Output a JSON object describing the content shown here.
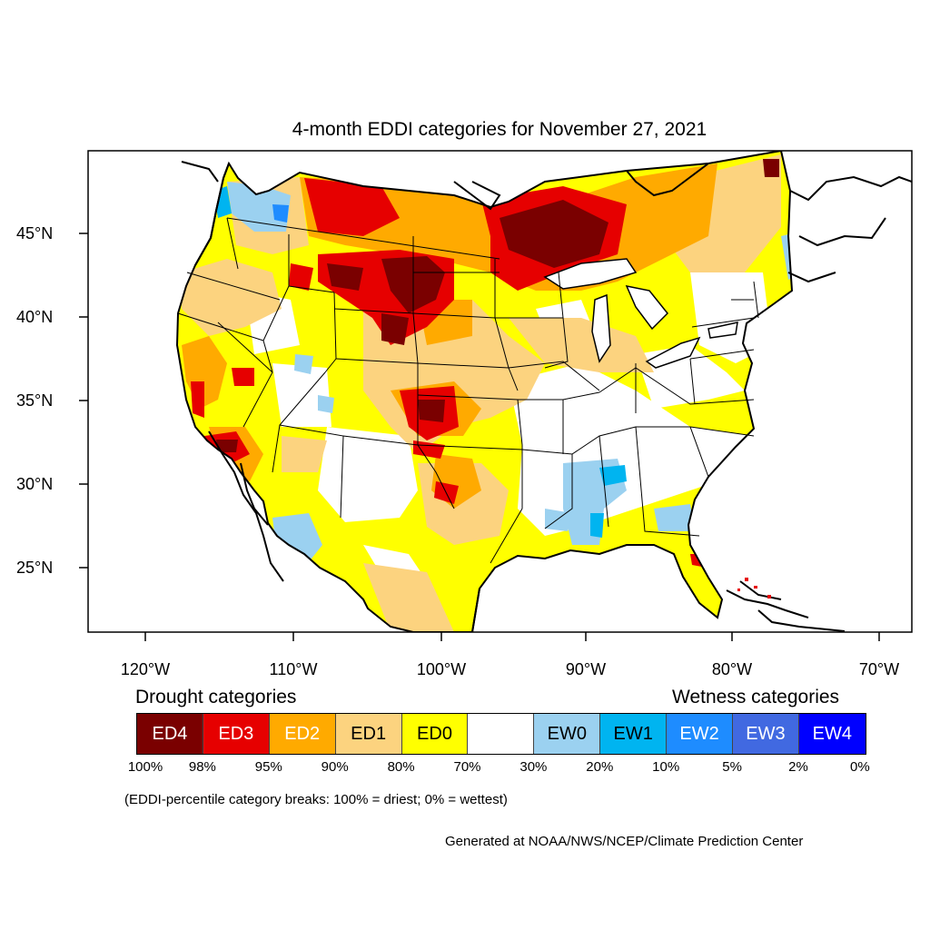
{
  "map": {
    "title": "4-month EDDI categories for November 27, 2021",
    "latitude_labels": [
      "45°N",
      "40°N",
      "35°N",
      "30°N",
      "25°N"
    ],
    "longitude_labels": [
      "120°W",
      "110°W",
      "100°W",
      "90°W",
      "80°W",
      "70°W"
    ],
    "region_colors": {
      "ED4": "#7a0000",
      "ED3": "#e60000",
      "ED2": "#ffaa00",
      "ED1": "#fcd37f",
      "ED0": "#ffff00",
      "neutral": "#ffffff",
      "EW0": "#9bd1f0",
      "EW1": "#00b4f0",
      "EW2": "#1e8cff",
      "EW3": "#4169e1",
      "EW4": "#0000ff"
    }
  },
  "legend": {
    "drought_heading": "Drought categories",
    "wetness_heading": "Wetness categories",
    "categories": [
      {
        "label": "ED4",
        "color": "#7a0000",
        "text_color": "#ffffff"
      },
      {
        "label": "ED3",
        "color": "#e60000",
        "text_color": "#ffffff"
      },
      {
        "label": "ED2",
        "color": "#ffaa00",
        "text_color": "#ffffff"
      },
      {
        "label": "ED1",
        "color": "#fcd37f",
        "text_color": "#000000"
      },
      {
        "label": "ED0",
        "color": "#ffff00",
        "text_color": "#000000"
      },
      {
        "label": "",
        "color": "#ffffff",
        "text_color": "#000000"
      },
      {
        "label": "EW0",
        "color": "#9bd1f0",
        "text_color": "#000000"
      },
      {
        "label": "EW1",
        "color": "#00b4f0",
        "text_color": "#000000"
      },
      {
        "label": "EW2",
        "color": "#1e8cff",
        "text_color": "#ffffff"
      },
      {
        "label": "EW3",
        "color": "#4169e1",
        "text_color": "#ffffff"
      },
      {
        "label": "EW4",
        "color": "#0000ff",
        "text_color": "#ffffff"
      }
    ],
    "percentiles": [
      "100%",
      "98%",
      "95%",
      "90%",
      "80%",
      "70%",
      "30%",
      "20%",
      "10%",
      "5%",
      "2%",
      "0%"
    ],
    "note": "(EDDI-percentile category breaks: 100% = driest; 0% = wettest)"
  },
  "credit": "Generated at NOAA/NWS/NCEP/Climate Prediction Center"
}
